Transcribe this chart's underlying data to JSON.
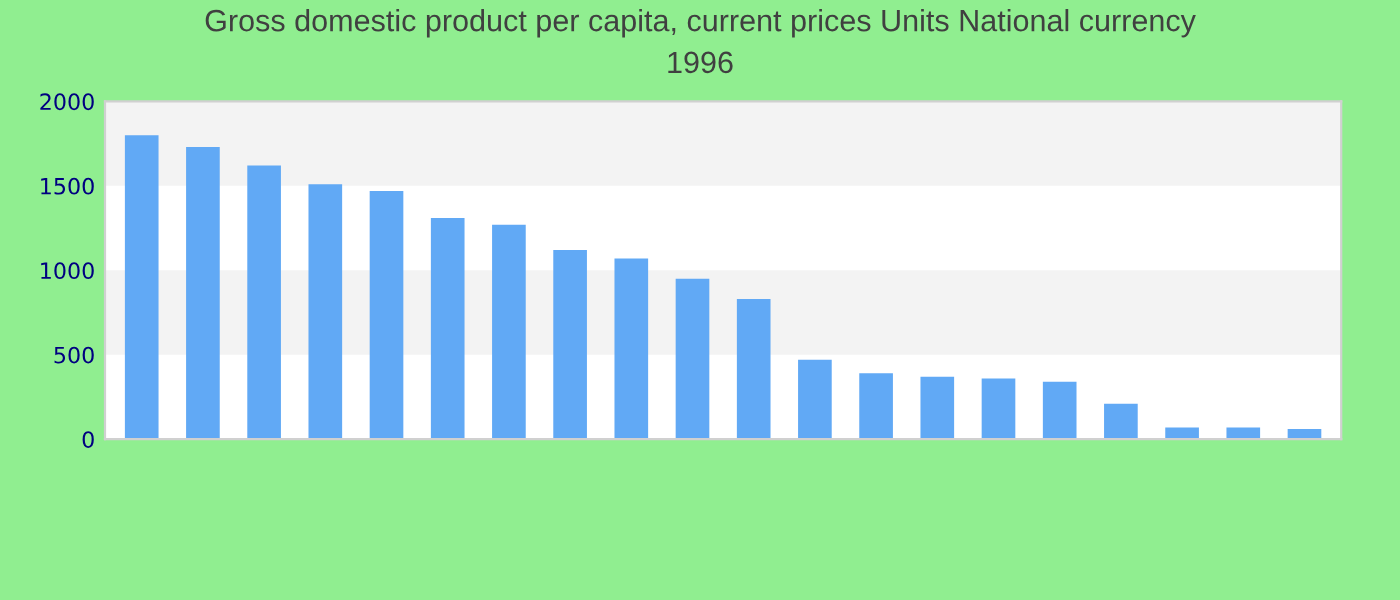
{
  "chart_data": {
    "type": "bar",
    "title": "Gross domestic product per capita, current prices Units National currency\n1996",
    "categories": [
      null,
      null,
      null,
      null,
      null,
      null,
      null,
      null,
      null,
      null,
      null,
      null,
      null,
      null,
      null,
      null,
      null,
      null,
      null,
      null
    ],
    "values": [
      1800,
      1730,
      1620,
      1510,
      1470,
      1310,
      1270,
      1120,
      1070,
      950,
      830,
      470,
      390,
      370,
      360,
      340,
      210,
      70,
      70,
      60
    ],
    "color": "#61a9f5",
    "ylim": [
      0,
      2000
    ],
    "yticks": [
      0,
      500,
      1000,
      1500,
      2000
    ],
    "bands": [
      {
        "axis": "y",
        "from": 500,
        "to": 1000,
        "color": "#f3f3f3"
      },
      {
        "axis": "y",
        "from": 1500,
        "to": 2000,
        "color": "#f3f3f3"
      }
    ]
  }
}
